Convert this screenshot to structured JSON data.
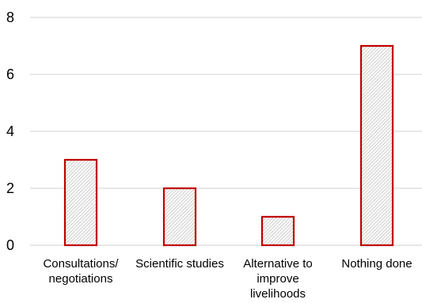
{
  "chart_data": {
    "type": "bar",
    "categories": [
      [
        "Consultations/",
        "negotiations"
      ],
      [
        "Scientific studies"
      ],
      [
        "Alternative to",
        "improve",
        "livelihoods"
      ],
      [
        "Nothing done"
      ]
    ],
    "values": [
      3,
      2,
      1,
      7
    ],
    "ylim": [
      0,
      8
    ],
    "yticks": [
      0,
      2,
      4,
      6,
      8
    ],
    "grid": true,
    "legend": "none",
    "title": "",
    "xlabel": "",
    "ylabel": "",
    "colors": {
      "bar_stroke": "#c00000",
      "bar_hatch": "#bfbfbf",
      "gridline": "#d9d9d9"
    }
  }
}
